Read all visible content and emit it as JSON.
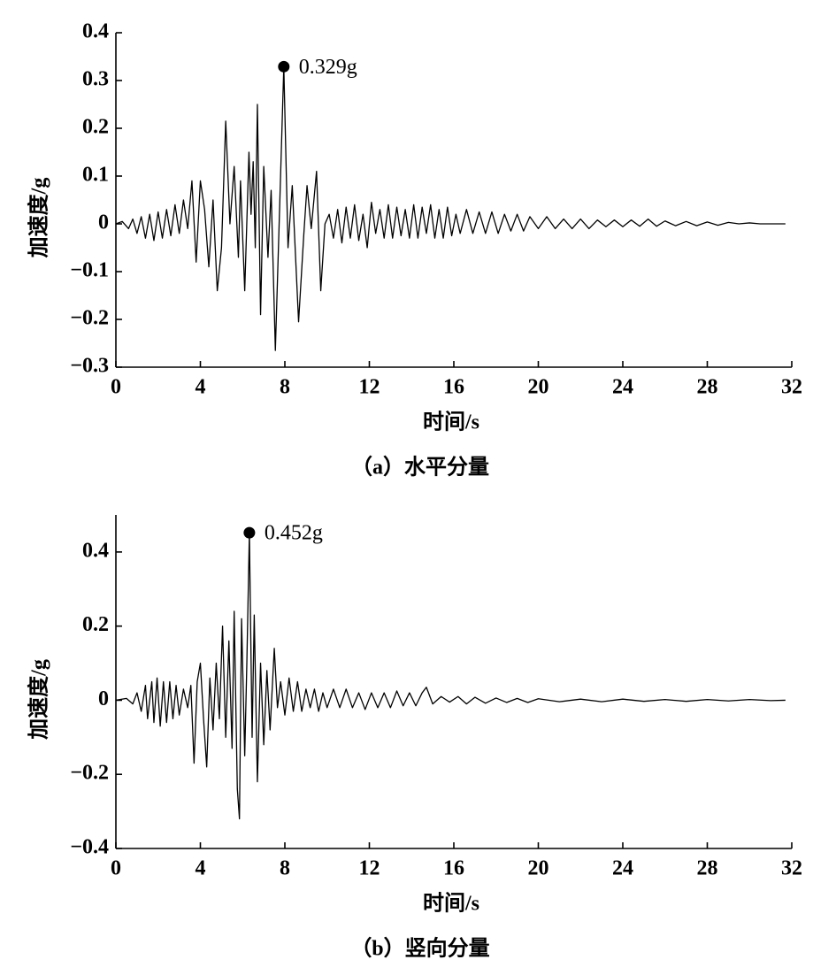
{
  "chart_data": [
    {
      "type": "line",
      "caption": "（a）水平分量",
      "xlabel": "时间/s",
      "ylabel": "加速度/g",
      "xlim": [
        0,
        32
      ],
      "xticks": [
        0,
        4,
        8,
        12,
        16,
        20,
        24,
        28,
        32
      ],
      "ylim": [
        -0.3,
        0.4
      ],
      "yticks": [
        {
          "value": -0.3,
          "label": "−0.3"
        },
        {
          "value": -0.2,
          "label": "−0.2"
        },
        {
          "value": -0.1,
          "label": "−0.1"
        },
        0,
        0.1,
        0.2,
        0.3,
        0.4
      ],
      "x": [
        0,
        0.3,
        0.6,
        0.8,
        1.0,
        1.2,
        1.4,
        1.6,
        1.8,
        2.0,
        2.2,
        2.4,
        2.6,
        2.8,
        3.0,
        3.2,
        3.4,
        3.6,
        3.8,
        4.0,
        4.2,
        4.4,
        4.6,
        4.8,
        5.0,
        5.2,
        5.4,
        5.6,
        5.8,
        5.9,
        6.1,
        6.3,
        6.4,
        6.5,
        6.6,
        6.7,
        6.85,
        7.0,
        7.2,
        7.35,
        7.55,
        7.75,
        7.95,
        8.15,
        8.35,
        8.65,
        8.9,
        9.05,
        9.25,
        9.5,
        9.7,
        9.9,
        10.1,
        10.3,
        10.5,
        10.7,
        10.9,
        11.1,
        11.3,
        11.5,
        11.7,
        11.9,
        12.1,
        12.3,
        12.5,
        12.7,
        12.9,
        13.1,
        13.3,
        13.5,
        13.7,
        13.9,
        14.1,
        14.3,
        14.5,
        14.7,
        14.9,
        15.1,
        15.3,
        15.5,
        15.7,
        15.9,
        16.1,
        16.3,
        16.6,
        16.9,
        17.2,
        17.5,
        17.8,
        18.1,
        18.4,
        18.7,
        19.0,
        19.3,
        19.6,
        20.0,
        20.4,
        20.8,
        21.2,
        21.6,
        22.0,
        22.4,
        22.8,
        23.2,
        23.6,
        24.0,
        24.4,
        24.8,
        25.2,
        25.6,
        26.0,
        26.5,
        27.0,
        27.5,
        28.0,
        28.5,
        29.0,
        29.5,
        30.0,
        30.5,
        31.7
      ],
      "series": [
        {
          "color": "#000000",
          "values": [
            0,
            0.005,
            -0.01,
            0.01,
            -0.02,
            0.015,
            -0.03,
            0.02,
            -0.035,
            0.025,
            -0.03,
            0.03,
            -0.025,
            0.04,
            -0.02,
            0.05,
            -0.01,
            0.09,
            -0.08,
            0.09,
            0.03,
            -0.09,
            0.05,
            -0.14,
            -0.05,
            0.215,
            0.0,
            0.12,
            -0.07,
            0.09,
            -0.14,
            0.15,
            0.02,
            0.13,
            -0.05,
            0.25,
            -0.19,
            0.12,
            -0.07,
            0.07,
            -0.265,
            0.03,
            0.329,
            -0.05,
            0.08,
            -0.205,
            -0.02,
            0.08,
            -0.01,
            0.11,
            -0.14,
            0.0,
            0.02,
            -0.03,
            0.03,
            -0.04,
            0.035,
            -0.03,
            0.04,
            -0.035,
            0.02,
            -0.05,
            0.045,
            -0.02,
            0.03,
            -0.03,
            0.04,
            -0.03,
            0.035,
            -0.025,
            0.03,
            -0.03,
            0.04,
            -0.03,
            0.035,
            -0.02,
            0.04,
            -0.03,
            0.03,
            -0.03,
            0.035,
            -0.025,
            0.02,
            -0.02,
            0.03,
            -0.02,
            0.025,
            -0.02,
            0.025,
            -0.02,
            0.02,
            -0.015,
            0.02,
            -0.015,
            0.015,
            -0.01,
            0.015,
            -0.01,
            0.01,
            -0.01,
            0.01,
            -0.01,
            0.008,
            -0.006,
            0.008,
            -0.006,
            0.008,
            -0.005,
            0.01,
            -0.005,
            0.006,
            -0.004,
            0.005,
            -0.004,
            0.004,
            -0.003,
            0.003,
            0.0,
            0.002,
            0,
            0
          ]
        }
      ],
      "annotations": [
        {
          "text": "0.329g",
          "x": 7.95,
          "y": 0.329
        }
      ]
    },
    {
      "type": "line",
      "caption": "（b）竖向分量",
      "xlabel": "时间/s",
      "ylabel": "加速度/g",
      "xlim": [
        0,
        32
      ],
      "xticks": [
        0,
        4,
        8,
        12,
        16,
        20,
        24,
        28,
        32
      ],
      "ylim": [
        -0.4,
        0.5
      ],
      "yticks": [
        {
          "value": -0.4,
          "label": "−0.4"
        },
        {
          "value": -0.2,
          "label": "−0.2"
        },
        0,
        0.2,
        0.4
      ],
      "x": [
        0,
        0.5,
        0.8,
        1.0,
        1.2,
        1.4,
        1.5,
        1.7,
        1.8,
        1.95,
        2.1,
        2.25,
        2.4,
        2.55,
        2.7,
        2.85,
        3.0,
        3.2,
        3.4,
        3.55,
        3.7,
        3.85,
        4.0,
        4.15,
        4.3,
        4.45,
        4.6,
        4.75,
        4.9,
        5.05,
        5.2,
        5.35,
        5.5,
        5.6,
        5.75,
        5.85,
        5.95,
        6.1,
        6.2,
        6.32,
        6.45,
        6.55,
        6.7,
        6.85,
        7.0,
        7.15,
        7.3,
        7.5,
        7.65,
        7.8,
        8.0,
        8.2,
        8.4,
        8.6,
        8.8,
        9.0,
        9.2,
        9.4,
        9.6,
        9.8,
        10.0,
        10.3,
        10.6,
        10.9,
        11.2,
        11.5,
        11.8,
        12.1,
        12.4,
        12.7,
        13.0,
        13.3,
        13.6,
        13.9,
        14.2,
        14.5,
        14.7,
        15.0,
        15.4,
        15.8,
        16.2,
        16.6,
        17.0,
        17.5,
        18.0,
        18.5,
        19.0,
        19.5,
        20.0,
        21.0,
        22.0,
        23.0,
        24.0,
        25.0,
        26.0,
        27.0,
        28.0,
        29.0,
        30.0,
        31.0,
        31.7
      ],
      "series": [
        {
          "color": "#000000",
          "values": [
            0,
            0.005,
            -0.01,
            0.02,
            -0.03,
            0.04,
            -0.05,
            0.05,
            -0.06,
            0.06,
            -0.07,
            0.05,
            -0.06,
            0.05,
            -0.05,
            0.04,
            -0.04,
            0.03,
            -0.02,
            0.04,
            -0.17,
            0.05,
            0.1,
            -0.05,
            -0.18,
            0.06,
            -0.08,
            0.1,
            -0.05,
            0.2,
            -0.1,
            0.16,
            -0.13,
            0.24,
            -0.24,
            -0.32,
            0.22,
            -0.15,
            0.1,
            0.452,
            -0.1,
            0.23,
            -0.22,
            0.1,
            -0.12,
            0.08,
            -0.08,
            0.14,
            -0.02,
            0.05,
            -0.04,
            0.06,
            -0.03,
            0.05,
            -0.03,
            0.03,
            -0.02,
            0.03,
            -0.03,
            0.02,
            -0.02,
            0.03,
            -0.02,
            0.03,
            -0.02,
            0.02,
            -0.025,
            0.02,
            -0.02,
            0.02,
            -0.02,
            0.025,
            -0.015,
            0.02,
            -0.015,
            0.02,
            0.035,
            -0.01,
            0.01,
            -0.005,
            0.01,
            -0.01,
            0.008,
            -0.008,
            0.006,
            -0.006,
            0.005,
            -0.006,
            0.004,
            -0.004,
            0.003,
            -0.004,
            0.003,
            -0.003,
            0.002,
            -0.003,
            0.002,
            -0.002,
            0.002,
            -0.001,
            0
          ]
        }
      ],
      "annotations": [
        {
          "text": "0.452g",
          "x": 6.32,
          "y": 0.452
        }
      ]
    }
  ]
}
